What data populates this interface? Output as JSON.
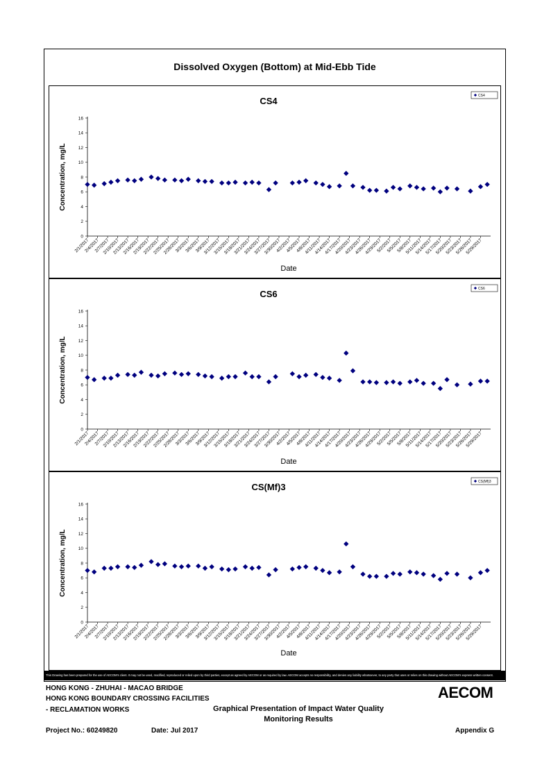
{
  "main_title": "Dissolved Oxygen (Bottom) at Mid-Ebb Tide",
  "disclaimer": "This Drawing has been prepared for the use of AECOM's client. It may not be used, modified, reproduced or relied upon by third parties, except as agreed by AECOM or as required by law. AECOM accepts no responsibility, and denies any liability whatsoever, to any party that uses or relies on this drawing without AECOM's express written consent.",
  "title_block": {
    "line1": "HONG KONG - ZHUHAI - MACAO BRIDGE",
    "line2": "HONG KONG BOUNDARY CROSSING FACILITIES",
    "line3": "- RECLAMATION WORKS",
    "drawing_title_1": "Graphical Presentation of Impact Water Quality",
    "drawing_title_2": "Monitoring Results",
    "project_no": "Project No.: 60249820",
    "date": "Date: Jul 2017",
    "appendix": "Appendix G",
    "logo": "AECOM"
  },
  "chart_colors": {
    "marker": "#00007f",
    "axis": "#000000"
  },
  "chart_data": [
    {
      "type": "scatter",
      "title": "CS4",
      "xlabel": "Date",
      "ylabel": "Concentration, mg/L",
      "ylim": [
        0,
        16
      ],
      "yticks": [
        0,
        2,
        4,
        6,
        8,
        10,
        12,
        14,
        16
      ],
      "xlim": [
        "2/1/2017",
        "6/1/2017"
      ],
      "xticks": [
        "2/1/2017",
        "2/4/2017",
        "2/7/2017",
        "2/10/2017",
        "2/13/2017",
        "2/16/2017",
        "2/19/2017",
        "2/22/2017",
        "2/25/2017",
        "2/28/2017",
        "3/3/2017",
        "3/6/2017",
        "3/9/2017",
        "3/12/2017",
        "3/15/2017",
        "3/18/2017",
        "3/21/2017",
        "3/24/2017",
        "3/27/2017",
        "3/30/2017",
        "4/2/2017",
        "4/5/2017",
        "4/8/2017",
        "4/11/2017",
        "4/14/2017",
        "4/17/2017",
        "4/20/2017",
        "4/23/2017",
        "4/26/2017",
        "4/29/2017",
        "5/2/2017",
        "5/5/2017",
        "5/8/2017",
        "5/11/2017",
        "5/14/2017",
        "5/17/2017",
        "5/20/2017",
        "5/23/2017",
        "5/26/2017",
        "5/29/2017"
      ],
      "legend_position": "top-right",
      "series": [
        {
          "name": "CS4",
          "x": [
            "2/1/2017",
            "2/3/2017",
            "2/6/2017",
            "2/8/2017",
            "2/10/2017",
            "2/13/2017",
            "2/15/2017",
            "2/17/2017",
            "2/20/2017",
            "2/22/2017",
            "2/24/2017",
            "2/27/2017",
            "3/1/2017",
            "3/3/2017",
            "3/6/2017",
            "3/8/2017",
            "3/10/2017",
            "3/13/2017",
            "3/15/2017",
            "3/17/2017",
            "3/20/2017",
            "3/22/2017",
            "3/24/2017",
            "3/27/2017",
            "3/29/2017",
            "4/3/2017",
            "4/5/2017",
            "4/7/2017",
            "4/10/2017",
            "4/12/2017",
            "4/14/2017",
            "4/17/2017",
            "4/19/2017",
            "4/21/2017",
            "4/24/2017",
            "4/26/2017",
            "4/28/2017",
            "5/1/2017",
            "5/3/2017",
            "5/5/2017",
            "5/8/2017",
            "5/10/2017",
            "5/12/2017",
            "5/15/2017",
            "5/17/2017",
            "5/19/2017",
            "5/22/2017",
            "5/26/2017",
            "5/29/2017",
            "5/31/2017"
          ],
          "y": [
            7.0,
            6.9,
            7.1,
            7.3,
            7.5,
            7.6,
            7.5,
            7.7,
            8.0,
            7.8,
            7.6,
            7.6,
            7.5,
            7.7,
            7.5,
            7.4,
            7.4,
            7.2,
            7.2,
            7.3,
            7.2,
            7.3,
            7.2,
            6.3,
            7.2,
            7.2,
            7.3,
            7.5,
            7.2,
            7.0,
            6.7,
            6.8,
            8.5,
            6.8,
            6.6,
            6.2,
            6.2,
            6.1,
            6.6,
            6.4,
            6.8,
            6.6,
            6.4,
            6.5,
            6.0,
            6.5,
            6.4,
            6.1,
            6.7,
            7.0
          ]
        }
      ]
    },
    {
      "type": "scatter",
      "title": "CS6",
      "xlabel": "Date",
      "ylabel": "Concentration, mg/L",
      "ylim": [
        0,
        16
      ],
      "yticks": [
        0,
        2,
        4,
        6,
        8,
        10,
        12,
        14,
        16
      ],
      "xlim": [
        "2/1/2017",
        "6/1/2017"
      ],
      "xticks": [
        "2/1/2017",
        "2/4/2017",
        "2/7/2017",
        "2/10/2017",
        "2/13/2017",
        "2/16/2017",
        "2/19/2017",
        "2/22/2017",
        "2/25/2017",
        "2/28/2017",
        "3/3/2017",
        "3/6/2017",
        "3/9/2017",
        "3/12/2017",
        "3/15/2017",
        "3/18/2017",
        "3/21/2017",
        "3/24/2017",
        "3/27/2017",
        "3/30/2017",
        "4/2/2017",
        "4/5/2017",
        "4/8/2017",
        "4/11/2017",
        "4/14/2017",
        "4/17/2017",
        "4/20/2017",
        "4/23/2017",
        "4/26/2017",
        "4/29/2017",
        "5/2/2017",
        "5/5/2017",
        "5/8/2017",
        "5/11/2017",
        "5/14/2017",
        "5/17/2017",
        "5/20/2017",
        "5/23/2017",
        "5/26/2017",
        "5/29/2017"
      ],
      "legend_position": "top-right",
      "series": [
        {
          "name": "CS6",
          "x": [
            "2/1/2017",
            "2/3/2017",
            "2/6/2017",
            "2/8/2017",
            "2/10/2017",
            "2/13/2017",
            "2/15/2017",
            "2/17/2017",
            "2/20/2017",
            "2/22/2017",
            "2/24/2017",
            "2/27/2017",
            "3/1/2017",
            "3/3/2017",
            "3/6/2017",
            "3/8/2017",
            "3/10/2017",
            "3/13/2017",
            "3/15/2017",
            "3/17/2017",
            "3/20/2017",
            "3/22/2017",
            "3/24/2017",
            "3/27/2017",
            "3/29/2017",
            "4/3/2017",
            "4/5/2017",
            "4/7/2017",
            "4/10/2017",
            "4/12/2017",
            "4/14/2017",
            "4/17/2017",
            "4/19/2017",
            "4/21/2017",
            "4/24/2017",
            "4/26/2017",
            "4/28/2017",
            "5/1/2017",
            "5/3/2017",
            "5/5/2017",
            "5/8/2017",
            "5/10/2017",
            "5/12/2017",
            "5/15/2017",
            "5/17/2017",
            "5/19/2017",
            "5/22/2017",
            "5/26/2017",
            "5/29/2017",
            "5/31/2017"
          ],
          "y": [
            7.0,
            6.7,
            6.9,
            6.9,
            7.3,
            7.4,
            7.3,
            7.7,
            7.3,
            7.2,
            7.5,
            7.6,
            7.4,
            7.5,
            7.4,
            7.2,
            7.1,
            6.9,
            7.1,
            7.1,
            7.6,
            7.1,
            7.1,
            6.4,
            7.1,
            7.5,
            7.1,
            7.3,
            7.4,
            7.0,
            6.9,
            6.6,
            10.3,
            7.9,
            6.4,
            6.4,
            6.3,
            6.3,
            6.4,
            6.2,
            6.4,
            6.6,
            6.2,
            6.2,
            5.5,
            6.7,
            6.0,
            6.1,
            6.5,
            6.5
          ]
        }
      ]
    },
    {
      "type": "scatter",
      "title": "CS(Mf)3",
      "xlabel": "Date",
      "ylabel": "Concentration, mg/L",
      "ylim": [
        0,
        16
      ],
      "yticks": [
        0,
        2,
        4,
        6,
        8,
        10,
        12,
        14,
        16
      ],
      "xlim": [
        "2/1/2017",
        "6/1/2017"
      ],
      "xticks": [
        "2/1/2017",
        "2/4/2017",
        "2/7/2017",
        "2/10/2017",
        "2/13/2017",
        "2/16/2017",
        "2/19/2017",
        "2/22/2017",
        "2/25/2017",
        "2/28/2017",
        "3/3/2017",
        "3/6/2017",
        "3/9/2017",
        "3/12/2017",
        "3/15/2017",
        "3/18/2017",
        "3/21/2017",
        "3/24/2017",
        "3/27/2017",
        "3/30/2017",
        "4/2/2017",
        "4/5/2017",
        "4/8/2017",
        "4/11/2017",
        "4/14/2017",
        "4/17/2017",
        "4/20/2017",
        "4/23/2017",
        "4/26/2017",
        "4/29/2017",
        "5/2/2017",
        "5/5/2017",
        "5/8/2017",
        "5/11/2017",
        "5/14/2017",
        "5/17/2017",
        "5/20/2017",
        "5/23/2017",
        "5/26/2017",
        "5/29/2017"
      ],
      "legend_position": "top-right",
      "series": [
        {
          "name": "CS(Mf)3",
          "x": [
            "2/1/2017",
            "2/3/2017",
            "2/6/2017",
            "2/8/2017",
            "2/10/2017",
            "2/13/2017",
            "2/15/2017",
            "2/17/2017",
            "2/20/2017",
            "2/22/2017",
            "2/24/2017",
            "2/27/2017",
            "3/1/2017",
            "3/3/2017",
            "3/6/2017",
            "3/8/2017",
            "3/10/2017",
            "3/13/2017",
            "3/15/2017",
            "3/17/2017",
            "3/20/2017",
            "3/22/2017",
            "3/24/2017",
            "3/27/2017",
            "3/29/2017",
            "4/3/2017",
            "4/5/2017",
            "4/7/2017",
            "4/10/2017",
            "4/12/2017",
            "4/14/2017",
            "4/17/2017",
            "4/19/2017",
            "4/21/2017",
            "4/24/2017",
            "4/26/2017",
            "4/28/2017",
            "5/1/2017",
            "5/3/2017",
            "5/5/2017",
            "5/8/2017",
            "5/10/2017",
            "5/12/2017",
            "5/15/2017",
            "5/17/2017",
            "5/19/2017",
            "5/22/2017",
            "5/26/2017",
            "5/29/2017",
            "5/31/2017"
          ],
          "y": [
            7.0,
            6.8,
            7.3,
            7.3,
            7.5,
            7.5,
            7.4,
            7.7,
            8.2,
            7.8,
            7.9,
            7.6,
            7.5,
            7.6,
            7.6,
            7.3,
            7.5,
            7.2,
            7.1,
            7.2,
            7.5,
            7.3,
            7.4,
            6.4,
            7.1,
            7.2,
            7.4,
            7.5,
            7.3,
            7.0,
            6.7,
            6.8,
            10.6,
            7.5,
            6.5,
            6.2,
            6.2,
            6.2,
            6.6,
            6.5,
            6.8,
            6.7,
            6.5,
            6.3,
            5.8,
            6.6,
            6.5,
            6.0,
            6.7,
            7.0
          ]
        }
      ]
    }
  ]
}
